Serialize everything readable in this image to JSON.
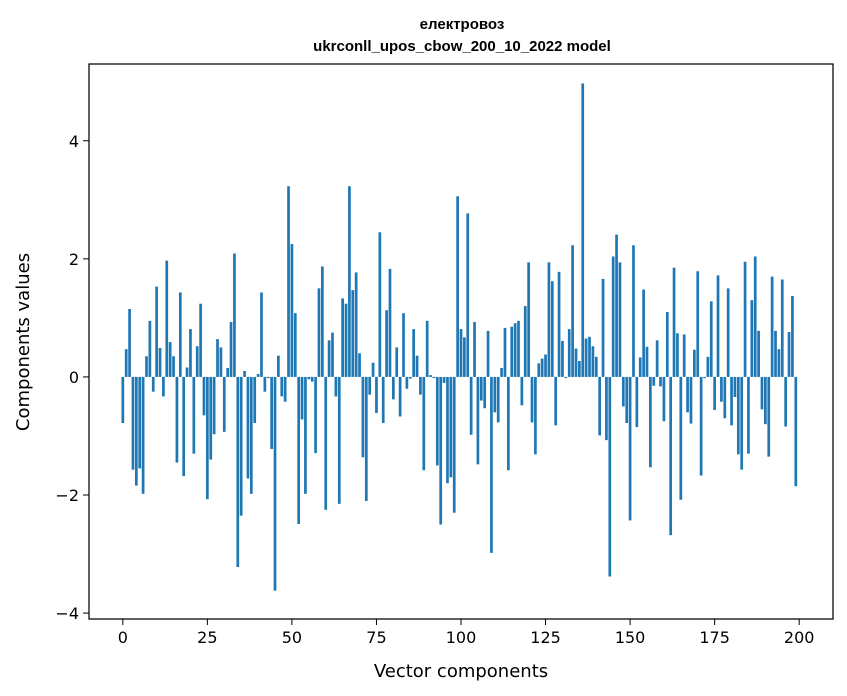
{
  "chart_data": {
    "type": "bar",
    "title": "електровоз",
    "subtitle": "ukrconll_upos_cbow_200_10_2022 model",
    "xlabel": "Vector components",
    "ylabel": "Components values",
    "xlim": [
      -10,
      210
    ],
    "ylim": [
      -4.1,
      5.3
    ],
    "xticks": [
      0,
      25,
      50,
      75,
      100,
      125,
      150,
      175,
      200
    ],
    "xtick_labels": [
      "0",
      "25",
      "50",
      "75",
      "100",
      "125",
      "150",
      "175",
      "200"
    ],
    "yticks": [
      -4,
      -2,
      0,
      2,
      4
    ],
    "ytick_labels": [
      "−4",
      "−2",
      "0",
      "2",
      "4"
    ],
    "grid": false,
    "legend": "none",
    "bar_color": "#1f77b4",
    "x": [
      0,
      1,
      2,
      3,
      4,
      5,
      6,
      7,
      8,
      9,
      10,
      11,
      12,
      13,
      14,
      15,
      16,
      17,
      18,
      19,
      20,
      21,
      22,
      23,
      24,
      25,
      26,
      27,
      28,
      29,
      30,
      31,
      32,
      33,
      34,
      35,
      36,
      37,
      38,
      39,
      40,
      41,
      42,
      43,
      44,
      45,
      46,
      47,
      48,
      49,
      50,
      51,
      52,
      53,
      54,
      55,
      56,
      57,
      58,
      59,
      60,
      61,
      62,
      63,
      64,
      65,
      66,
      67,
      68,
      69,
      70,
      71,
      72,
      73,
      74,
      75,
      76,
      77,
      78,
      79,
      80,
      81,
      82,
      83,
      84,
      85,
      86,
      87,
      88,
      89,
      90,
      91,
      92,
      93,
      94,
      95,
      96,
      97,
      98,
      99,
      100,
      101,
      102,
      103,
      104,
      105,
      106,
      107,
      108,
      109,
      110,
      111,
      112,
      113,
      114,
      115,
      116,
      117,
      118,
      119,
      120,
      121,
      122,
      123,
      124,
      125,
      126,
      127,
      128,
      129,
      130,
      131,
      132,
      133,
      134,
      135,
      136,
      137,
      138,
      139,
      140,
      141,
      142,
      143,
      144,
      145,
      146,
      147,
      148,
      149,
      150,
      151,
      152,
      153,
      154,
      155,
      156,
      157,
      158,
      159,
      160,
      161,
      162,
      163,
      164,
      165,
      166,
      167,
      168,
      169,
      170,
      171,
      172,
      173,
      174,
      175,
      176,
      177,
      178,
      179,
      180,
      181,
      182,
      183,
      184,
      185,
      186,
      187,
      188,
      189,
      190,
      191,
      192,
      193,
      194,
      195,
      196,
      197,
      198,
      199
    ],
    "values": [
      -0.78,
      0.47,
      1.15,
      -1.57,
      -1.84,
      -1.55,
      -1.98,
      0.35,
      0.95,
      -0.25,
      1.53,
      0.49,
      -0.33,
      1.97,
      0.59,
      0.35,
      -1.45,
      1.43,
      -1.68,
      0.16,
      0.81,
      -1.3,
      0.52,
      1.24,
      -0.65,
      -2.07,
      -1.4,
      -0.97,
      0.64,
      0.5,
      -0.93,
      0.15,
      0.93,
      2.09,
      -3.22,
      -2.35,
      0.1,
      -1.72,
      -1.98,
      -0.78,
      0.05,
      1.43,
      -0.25,
      -0.02,
      -1.22,
      -3.62,
      0.36,
      -0.33,
      -0.42,
      3.23,
      2.25,
      1.08,
      -2.49,
      -0.72,
      -1.98,
      -0.04,
      -0.08,
      -1.29,
      1.5,
      1.87,
      -2.25,
      0.62,
      0.75,
      -0.33,
      -2.15,
      1.33,
      1.24,
      3.23,
      1.47,
      1.77,
      0.4,
      -1.36,
      -2.1,
      -0.3,
      0.24,
      -0.61,
      2.45,
      -0.78,
      1.13,
      1.83,
      -0.38,
      0.5,
      -0.67,
      1.08,
      -0.2,
      -0.03,
      0.81,
      0.36,
      -0.3,
      -1.58,
      0.95,
      0.03,
      -0.02,
      -1.5,
      -2.5,
      -0.1,
      -1.8,
      -1.7,
      -2.3,
      3.06,
      0.81,
      0.67,
      2.77,
      -0.98,
      0.93,
      -1.48,
      -0.4,
      -0.53,
      0.78,
      -2.98,
      -0.6,
      -0.77,
      0.15,
      0.83,
      -1.58,
      0.85,
      0.91,
      0.95,
      -0.48,
      1.2,
      1.94,
      -0.77,
      -1.31,
      0.23,
      0.31,
      0.38,
      1.94,
      1.62,
      -0.82,
      1.78,
      0.61,
      -0.02,
      0.81,
      2.23,
      0.48,
      0.27,
      4.97,
      0.65,
      0.68,
      0.52,
      0.34,
      -0.99,
      1.66,
      -1.07,
      -3.38,
      2.04,
      2.41,
      1.94,
      -0.5,
      -0.78,
      -2.43,
      2.23,
      -0.85,
      0.33,
      1.48,
      0.51,
      -1.53,
      -0.15,
      0.62,
      -0.16,
      -0.75,
      1.1,
      -2.68,
      1.85,
      0.74,
      -2.08,
      0.72,
      -0.6,
      -0.79,
      0.46,
      1.79,
      -1.67,
      -0.02,
      0.34,
      1.28,
      -0.56,
      1.72,
      -0.42,
      -0.7,
      1.5,
      -0.82,
      -0.34,
      -1.31,
      -1.57,
      1.95,
      -1.3,
      1.3,
      2.04,
      0.78,
      -0.55,
      -0.8,
      -1.35,
      1.7,
      0.78,
      0.47,
      1.65,
      -0.84,
      0.76,
      1.37,
      -1.85
    ]
  }
}
